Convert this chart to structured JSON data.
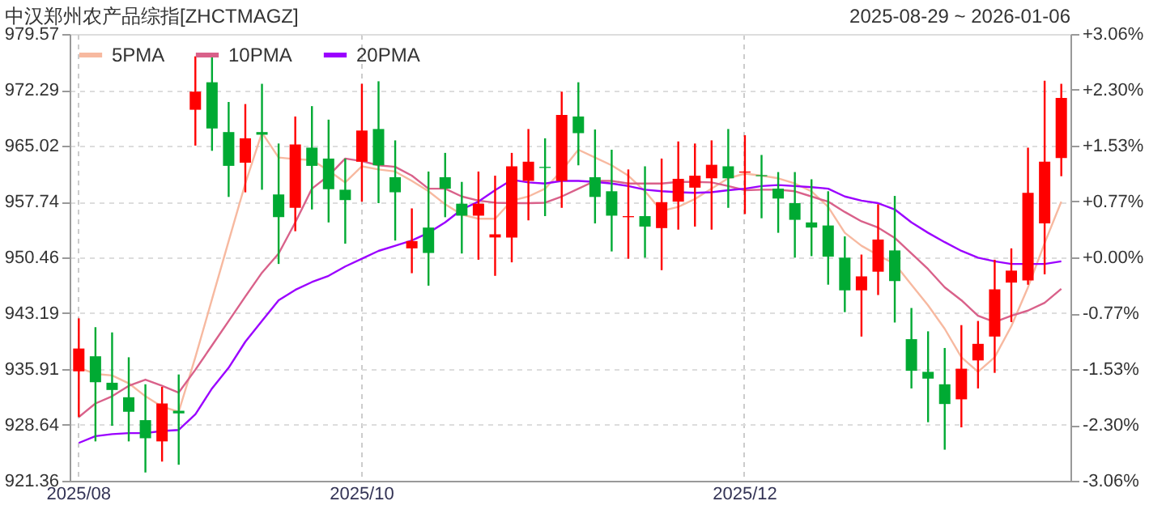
{
  "chart_data": {
    "type": "candlestick",
    "title": "中汉郑州农产品综指[ZHCTMAGZ]",
    "annotations": [
      "2025-08-29 ~ 2026-01-06"
    ],
    "categories": [
      "2025/08",
      null,
      null,
      null,
      null,
      null,
      null,
      null,
      null,
      null,
      null,
      null,
      null,
      null,
      null,
      null,
      null,
      "2025/10",
      null,
      null,
      null,
      null,
      null,
      null,
      null,
      null,
      null,
      null,
      null,
      null,
      null,
      null,
      null,
      null,
      null,
      null,
      null,
      null,
      null,
      null,
      "2025/12",
      null,
      null,
      null,
      null,
      null,
      null,
      null,
      null,
      null,
      null,
      null,
      null,
      null,
      null,
      null,
      null,
      null,
      null,
      null
    ],
    "ohlc": [
      [
        935.62,
        942.52,
        929.67,
        938.59
      ],
      [
        937.58,
        941.37,
        926.49,
        934.2
      ],
      [
        934.13,
        940.69,
        928.52,
        933.19
      ],
      [
        932.24,
        937.45,
        926.49,
        930.35
      ],
      [
        929.26,
        933.93,
        922.44,
        926.9
      ],
      [
        926.49,
        933.59,
        923.86,
        931.43
      ],
      [
        930.48,
        935.21,
        923.45,
        930.14
      ],
      [
        969.7,
        976.66,
        965.03,
        972.06
      ],
      [
        973.28,
        976.52,
        964.35,
        967.26
      ],
      [
        966.79,
        970.71,
        958.34,
        962.39
      ],
      [
        962.8,
        970.44,
        958.94,
        965.98
      ],
      [
        966.79,
        973.08,
        959.28,
        966.45
      ],
      [
        958.67,
        965.3,
        949.61,
        955.7
      ],
      [
        956.92,
        968.82,
        953.87,
        965.17
      ],
      [
        964.76,
        970.17,
        956.71,
        962.39
      ],
      [
        963.34,
        968.41,
        955.02,
        959.35
      ],
      [
        959.28,
        963.34,
        952.25,
        957.93
      ],
      [
        962.93,
        973.08,
        957.73,
        966.99
      ],
      [
        967.19,
        973.41,
        957.53,
        962.46
      ],
      [
        960.91,
        965.71,
        952.66,
        958.95
      ],
      [
        951.64,
        956.85,
        948.4,
        952.59
      ],
      [
        954.35,
        961.65,
        946.78,
        951.04
      ],
      [
        960.91,
        964.08,
        955.7,
        959.42
      ],
      [
        957.46,
        960.3,
        950.97,
        955.9
      ],
      [
        955.9,
        961.65,
        950.16,
        957.46
      ],
      [
        953.06,
        961.11,
        948.06,
        953.47
      ],
      [
        953.06,
        964.08,
        949.82,
        962.33
      ],
      [
        960.43,
        967.19,
        955.29,
        962.93
      ],
      [
        962.26,
        965.98,
        955.84,
        962.12
      ],
      [
        960.43,
        972.06,
        956.92,
        969.02
      ],
      [
        968.82,
        973.28,
        962.46,
        966.65
      ],
      [
        960.91,
        967.13,
        954.89,
        958.34
      ],
      [
        959.08,
        964.49,
        951.24,
        955.9
      ],
      [
        955.7,
        961.92,
        950.29,
        955.84
      ],
      [
        955.84,
        962.33,
        950.43,
        954.48
      ],
      [
        954.28,
        963.34,
        948.8,
        957.66
      ],
      [
        957.73,
        965.57,
        954.08,
        960.7
      ],
      [
        959.55,
        965.3,
        954.48,
        961.11
      ],
      [
        960.77,
        965.71,
        954.08,
        962.53
      ],
      [
        962.33,
        967.19,
        956.92,
        960.77
      ],
      [
        961.51,
        966.38,
        956.11,
        961.65
      ],
      [
        961.18,
        963.81,
        955.56,
        961.04
      ],
      [
        959.42,
        961.58,
        953.67,
        958.13
      ],
      [
        957.53,
        961.58,
        950.43,
        955.36
      ],
      [
        955.02,
        960.64,
        950.63,
        954.35
      ],
      [
        954.62,
        959.08,
        946.91,
        950.56
      ],
      [
        950.43,
        953.2,
        943.33,
        946.17
      ],
      [
        946.17,
        950.83,
        940.15,
        947.99
      ],
      [
        948.6,
        957.39,
        945.56,
        952.79
      ],
      [
        951.37,
        958.47,
        941.98,
        947.38
      ],
      [
        939.81,
        943.87,
        933.39,
        935.69
      ],
      [
        935.55,
        940.83,
        928.99,
        934.67
      ],
      [
        933.93,
        938.66,
        925.41,
        931.36
      ],
      [
        931.97,
        941.64,
        928.32,
        935.96
      ],
      [
        937.04,
        942.18,
        933.39,
        939.2
      ],
      [
        940.15,
        950.16,
        935.42,
        946.3
      ],
      [
        947.18,
        951.64,
        942.04,
        948.74
      ],
      [
        947.45,
        964.76,
        946.9,
        958.88
      ],
      [
        954.89,
        973.48,
        948.26,
        962.93
      ],
      [
        963.41,
        973.08,
        961.04,
        971.25
      ]
    ],
    "colors": [
      "#ff0000",
      "#00aa33",
      "#00aa33",
      "#00aa33",
      "#00aa33",
      "#ff0000",
      "#00aa33",
      "#ff0000",
      "#00aa33",
      "#00aa33",
      "#ff0000",
      "#00aa33",
      "#00aa33",
      "#ff0000",
      "#00aa33",
      "#00aa33",
      "#00aa33",
      "#ff0000",
      "#00aa33",
      "#00aa33",
      "#ff0000",
      "#00aa33",
      "#00aa33",
      "#00aa33",
      "#ff0000",
      "#ff0000",
      "#ff0000",
      "#ff0000",
      "#00aa33",
      "#ff0000",
      "#00aa33",
      "#00aa33",
      "#00aa33",
      "#ff0000",
      "#00aa33",
      "#ff0000",
      "#ff0000",
      "#ff0000",
      "#ff0000",
      "#00aa33",
      "#ff0000",
      "#00aa33",
      "#00aa33",
      "#00aa33",
      "#00aa33",
      "#00aa33",
      "#00aa33",
      "#ff0000",
      "#ff0000",
      "#00aa33",
      "#00aa33",
      "#00aa33",
      "#00aa33",
      "#ff0000",
      "#ff0000",
      "#ff0000",
      "#ff0000",
      "#ff0000",
      "#ff0000",
      "#ff0000"
    ],
    "series": [
      {
        "name": "5PMA",
        "type": "line",
        "color": "#f7b9a0",
        "values": [
          936.09,
          935.28,
          935.08,
          934.06,
          932.37,
          931.02,
          930.35,
          937.45,
          945.02,
          952.59,
          960.09,
          966.72,
          963.48,
          963.27,
          963.14,
          961.78,
          960.23,
          962.33,
          961.92,
          961.65,
          960.43,
          959.08,
          957.39,
          956.04,
          955.5,
          955.5,
          957.86,
          958.4,
          959.42,
          961.78,
          964.49,
          963.48,
          962.46,
          961.11,
          959.08,
          956.51,
          957.05,
          958.07,
          959.42,
          960.77,
          961.38,
          961.11,
          960.77,
          960.09,
          959.08,
          957.05,
          953.67,
          951.98,
          950.76,
          949.61,
          946.91,
          944.21,
          941.16,
          937.45,
          935.55,
          937.45,
          941.5,
          946.57,
          952.32,
          957.73
        ]
      },
      {
        "name": "10PMA",
        "type": "line",
        "color": "#d9618a",
        "values": [
          929.67,
          931.43,
          932.37,
          933.73,
          934.54,
          933.73,
          932.85,
          935.82,
          939.0,
          942.18,
          945.36,
          948.47,
          950.97,
          955.02,
          959.42,
          961.11,
          963.34,
          963.0,
          962.46,
          962.26,
          961.11,
          959.42,
          959.42,
          958.4,
          957.86,
          957.59,
          957.53,
          957.53,
          957.59,
          958.4,
          959.42,
          960.43,
          960.43,
          960.09,
          960.09,
          960.09,
          960.3,
          960.3,
          960.23,
          959.76,
          959.22,
          959.28,
          959.28,
          959.08,
          958.4,
          957.73,
          956.38,
          955.16,
          954.35,
          953.0,
          950.97,
          948.94,
          946.57,
          944.88,
          942.85,
          942.04,
          942.85,
          943.53,
          944.54,
          946.37
        ]
      },
      {
        "name": "20PMA",
        "type": "line",
        "color": "#9b00ff",
        "values": [
          926.29,
          927.17,
          927.44,
          927.57,
          927.57,
          927.84,
          927.98,
          930.01,
          933.39,
          936.09,
          939.47,
          942.18,
          944.88,
          946.23,
          947.25,
          948.06,
          949.28,
          950.29,
          951.31,
          951.98,
          952.66,
          953.67,
          955.02,
          956.71,
          957.73,
          959.22,
          960.57,
          960.23,
          960.09,
          960.43,
          960.43,
          960.3,
          960.09,
          959.76,
          959.28,
          959.08,
          958.95,
          958.88,
          958.95,
          959.22,
          959.42,
          959.76,
          959.89,
          959.76,
          959.62,
          959.42,
          958.4,
          957.86,
          957.53,
          956.71,
          955.02,
          953.67,
          952.45,
          951.31,
          950.43,
          949.95,
          949.61,
          949.61,
          949.61,
          949.95
        ]
      }
    ],
    "ylim": [
      921.36,
      979.57
    ],
    "yticks": [
      921.36,
      928.64,
      935.91,
      943.19,
      950.46,
      957.74,
      965.02,
      972.29,
      979.57
    ],
    "y2lim": [
      -3.06,
      3.06
    ],
    "y2ticks": [
      {
        "value": 3.06,
        "label": "+3.06%"
      },
      {
        "value": 2.3,
        "label": "+2.30%"
      },
      {
        "value": 1.53,
        "label": "+1.53%"
      },
      {
        "value": 0.77,
        "label": "+0.77%"
      },
      {
        "value": 0.0,
        "label": "+0.00%"
      },
      {
        "value": -0.77,
        "label": "-0.77%"
      },
      {
        "value": -1.53,
        "label": "-1.53%"
      },
      {
        "value": -2.3,
        "label": "-2.30%"
      },
      {
        "value": -3.06,
        "label": "-3.06%"
      }
    ],
    "grid": true,
    "legend": "top left"
  }
}
